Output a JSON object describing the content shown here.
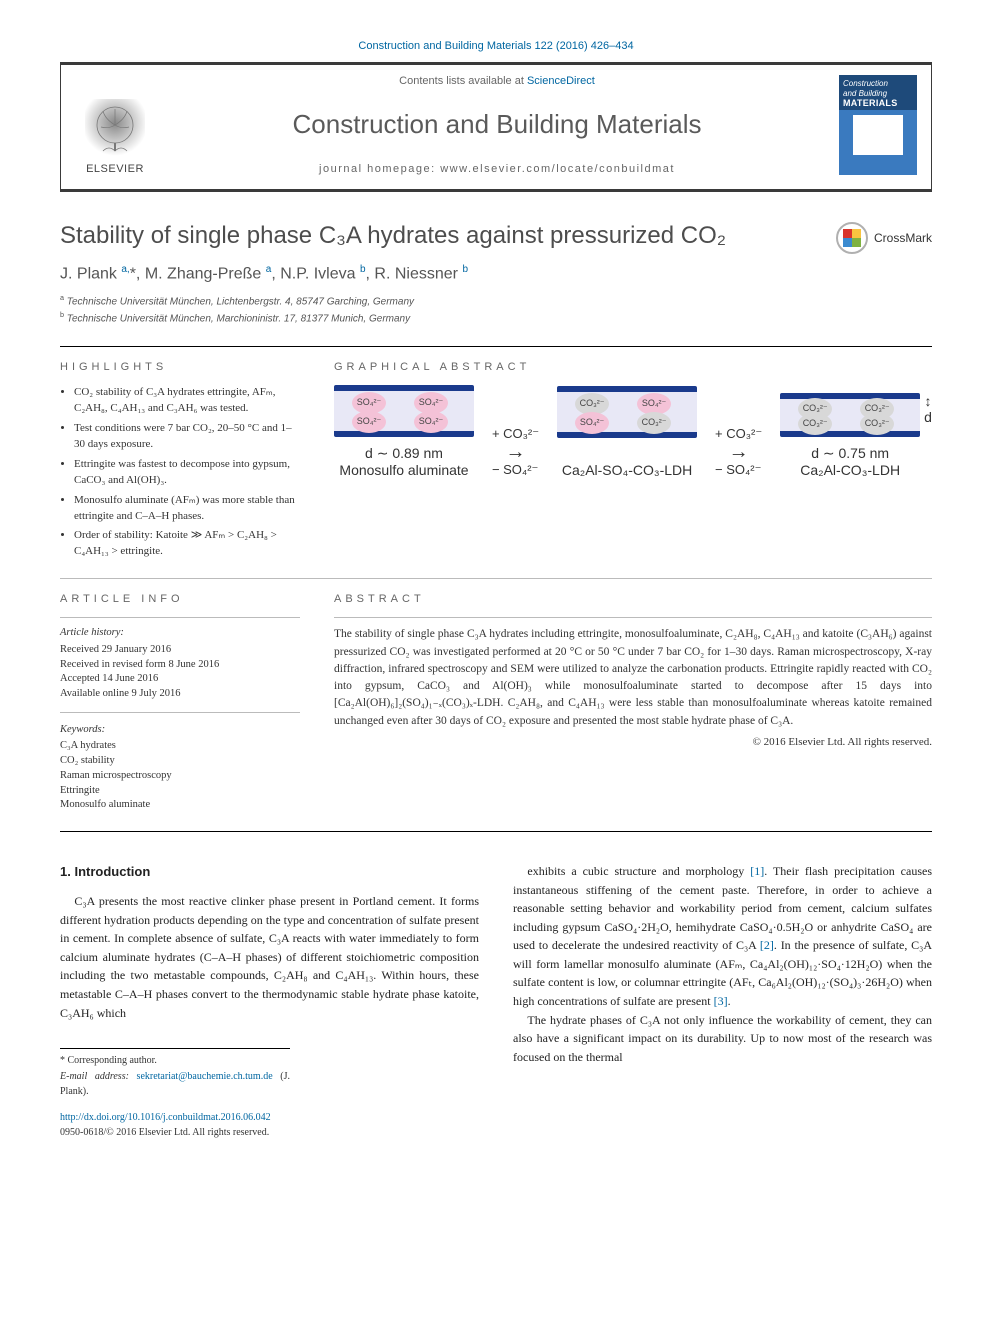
{
  "top_citation": "Construction and Building Materials 122 (2016) 426–434",
  "header": {
    "contents_line_pre": "Contents lists available at ",
    "contents_line_link": "ScienceDirect",
    "journal_title": "Construction and Building Materials",
    "homepage_pre": "journal homepage: ",
    "homepage_url": "www.elsevier.com/locate/conbuildmat",
    "publisher": "ELSEVIER",
    "cover": {
      "l1": "Construction",
      "l2": "and Building",
      "l3": "MATERIALS"
    }
  },
  "article": {
    "title": "Stability of single phase C₃A hydrates against pressurized CO₂",
    "crossmark": "CrossMark",
    "authors_html": "J. Plank <sup>a,</sup>*, M. Zhang-Preße <sup>a</sup>, N.P. Ivleva <sup>b</sup>, R. Niessner <sup>b</sup>",
    "affil_a": "Technische Universität München, Lichtenbergstr. 4, 85747 Garching, Germany",
    "affil_b": "Technische Universität München, Marchioninistr. 17, 81377 Munich, Germany"
  },
  "highlights": {
    "heading": "HIGHLIGHTS",
    "items": [
      "CO₂ stability of C₃A hydrates ettringite, AFₘ, C₂AH₈, C₄AH₁₃ and C₃AH₆ was tested.",
      "Test conditions were 7 bar CO₂, 20–50 °C and 1–30 days exposure.",
      "Ettringite was fastest to decompose into gypsum, CaCO₃ and Al(OH)₃.",
      "Monosulfo aluminate (AFₘ) was more stable than ettringite and C–A–H phases.",
      "Order of stability: Katoite ≫ AFₘ > C₂AH₈ > C₄AH₁₃ > ettringite."
    ]
  },
  "graphical_abstract": {
    "heading": "GRAPHICAL ABSTRACT",
    "so4": "SO₄²⁻",
    "co3": "CO₃²⁻",
    "arrow_top": "+ CO₃²⁻",
    "arrow_bot": "− SO₄²⁻",
    "d_label": "d",
    "stage1_d": "d ∼ 0.89 nm",
    "stage1_name": "Monosulfo aluminate",
    "stage2_name": "Ca₂Al-SO₄-CO₃-LDH",
    "stage3_d": "d ∼ 0.75 nm",
    "stage3_name": "Ca₂Al-CO₃-LDH",
    "colors": {
      "layer": "#1a3a8c",
      "interlayer": "#e8e8f6",
      "so4_ball": "#f4c2d7",
      "co3_ball": "#d8d8d8"
    }
  },
  "article_info": {
    "heading": "ARTICLE INFO",
    "history_title": "Article history:",
    "history": [
      "Received 29 January 2016",
      "Received in revised form 8 June 2016",
      "Accepted 14 June 2016",
      "Available online 9 July 2016"
    ],
    "keywords_title": "Keywords:",
    "keywords": [
      "C₃A hydrates",
      "CO₂ stability",
      "Raman microspectroscopy",
      "Ettringite",
      "Monosulfo aluminate"
    ]
  },
  "abstract": {
    "heading": "ABSTRACT",
    "text": "The stability of single phase C₃A hydrates including ettringite, monosulfoaluminate, C₂AH₈, C₄AH₁₃ and katoite (C₃AH₆) against pressurized CO₂ was investigated performed at 20 °C or 50 °C under 7 bar CO₂ for 1–30 days. Raman microspectroscopy, X-ray diffraction, infrared spectroscopy and SEM were utilized to analyze the carbonation products. Ettringite rapidly reacted with CO₂ into gypsum, CaCO₃ and Al(OH)₃ while monosulfoaluminate started to decompose after 15 days into [Ca₂Al(OH)₆]₂(SO₄)₁₋ₓ(CO₃)ₓ-LDH. C₂AH₈, and C₄AH₁₃ were less stable than monosulfoaluminate whereas katoite remained unchanged even after 30 days of CO₂ exposure and presented the most stable hydrate phase of C₃A.",
    "copyright": "© 2016 Elsevier Ltd. All rights reserved."
  },
  "body": {
    "intro_heading": "1. Introduction",
    "col1_p1": "C₃A presents the most reactive clinker phase present in Portland cement. It forms different hydration products depending on the type and concentration of sulfate present in cement. In complete absence of sulfate, C₃A reacts with water immediately to form calcium aluminate hydrates (C–A–H phases) of different stoichiometric composition including the two metastable compounds, C₂AH₈ and C₄AH₁₃. Within hours, these metastable C–A–H phases convert to the thermodynamic stable hydrate phase katoite, C₃AH₆ which",
    "col2_p1_pre": "exhibits a cubic structure and morphology ",
    "col2_ref1": "[1]",
    "col2_p1_mid1": ". Their flash precipitation causes instantaneous stiffening of the cement paste. Therefore, in order to achieve a reasonable setting behavior and workability period from cement, calcium sulfates including gypsum CaSO₄·2H₂O, hemihydrate CaSO₄·0.5H₂O or anhydrite CaSO₄ are used to decelerate the undesired reactivity of C₃A ",
    "col2_ref2": "[2]",
    "col2_p1_mid2": ". In the presence of sulfate, C₃A will form lamellar monosulfo aluminate (AFₘ, Ca₄Al₂(OH)₁₂·SO₄·12H₂O) when the sulfate content is low, or columnar ettringite (AFₜ, Ca₆Al₂(OH)₁₂·(SO₄)₃·26H₂O) when high concentrations of sulfate are present ",
    "col2_ref3": "[3]",
    "col2_p1_end": ".",
    "col2_p2": "The hydrate phases of C₃A not only influence the workability of cement, they can also have a significant impact on its durability. Up to now most of the research was focused on the thermal"
  },
  "footer": {
    "corresp_label": "* Corresponding author.",
    "email_label": "E-mail address: ",
    "email": "sekretariat@bauchemie.ch.tum.de",
    "email_name": " (J. Plank).",
    "doi": "http://dx.doi.org/10.1016/j.conbuildmat.2016.06.042",
    "issn_line": "0950-0618/© 2016 Elsevier Ltd. All rights reserved."
  }
}
